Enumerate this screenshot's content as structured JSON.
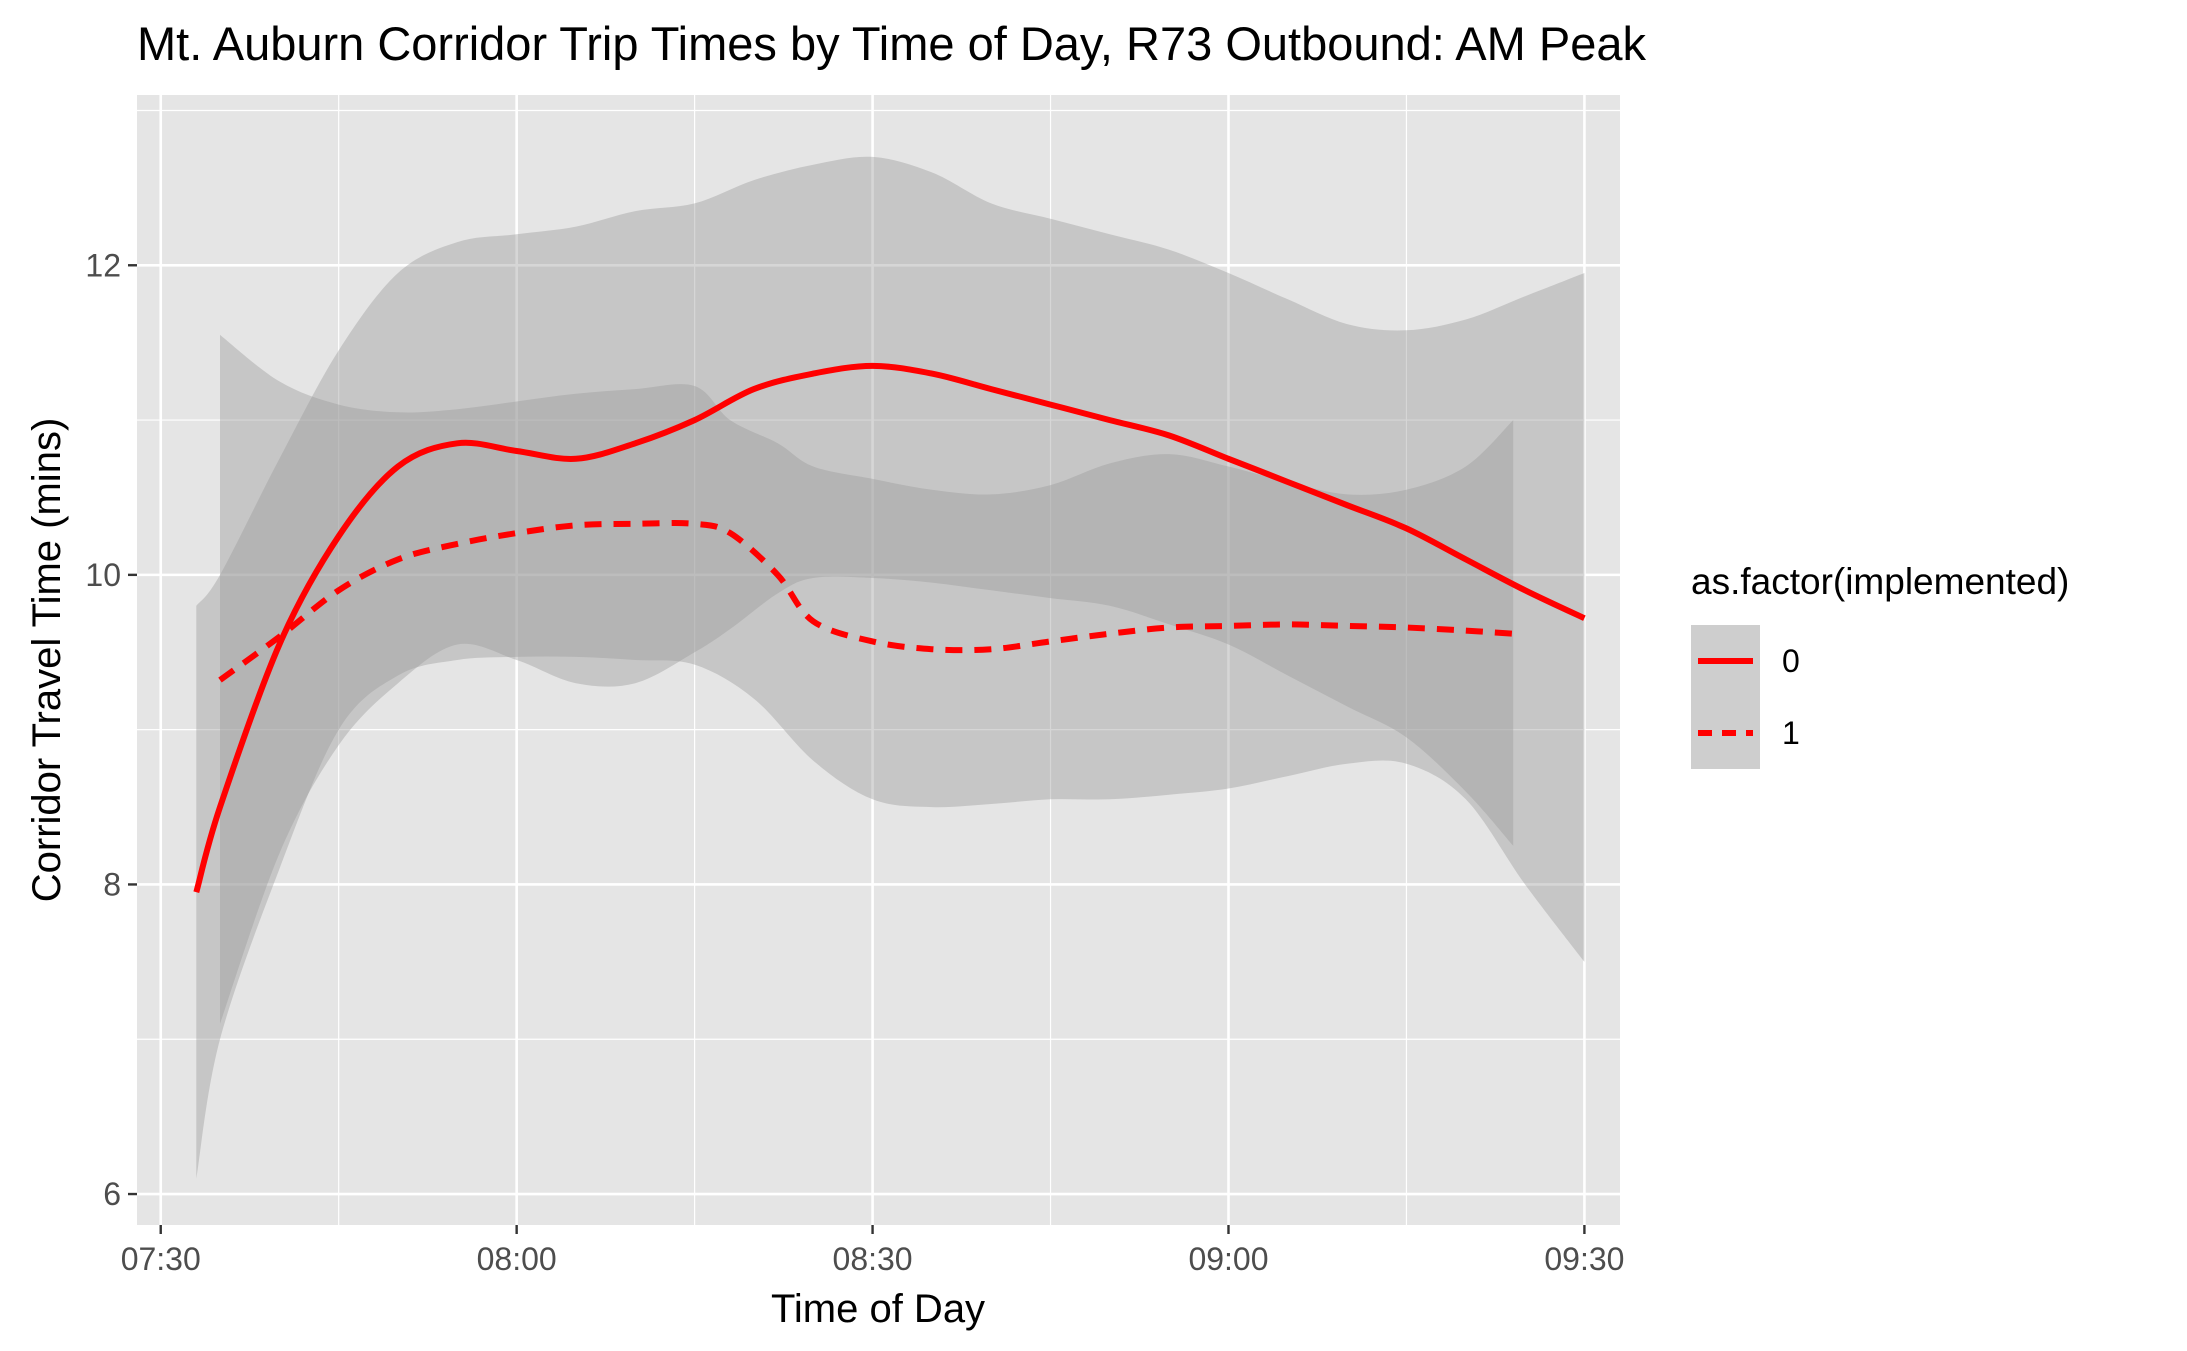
{
  "chart_data": {
    "type": "line",
    "title": "Mt. Auburn Corridor Trip Times by Time of Day, R73 Outbound: AM Peak",
    "xlabel": "Time of Day",
    "ylabel": "Corridor Travel Time (mins)",
    "x_unit": "clock time",
    "xlim": [
      "07:28",
      "09:33"
    ],
    "ylim": [
      5.8,
      13.1
    ],
    "x_ticks": [
      "07:30",
      "08:00",
      "08:30",
      "09:00",
      "09:30"
    ],
    "y_ticks": [
      6,
      8,
      10,
      12
    ],
    "grid": true,
    "legend": {
      "title": "as.factor(implemented)",
      "placement": "right",
      "entries": [
        "0",
        "1"
      ]
    },
    "series": [
      {
        "name": "0",
        "line_style": "solid",
        "color": "#ff0000",
        "band_color": "#999999",
        "points": [
          {
            "x": "07:33",
            "y": 7.95,
            "lo": 6.1,
            "hi": 9.8
          },
          {
            "x": "07:35",
            "y": 8.5,
            "lo": 7.0,
            "hi": 10.0
          },
          {
            "x": "07:40",
            "y": 9.55,
            "lo": 8.1,
            "hi": 10.75
          },
          {
            "x": "07:45",
            "y": 10.25,
            "lo": 9.0,
            "hi": 11.45
          },
          {
            "x": "07:50",
            "y": 10.7,
            "lo": 9.35,
            "hi": 11.95
          },
          {
            "x": "07:55",
            "y": 10.85,
            "lo": 9.45,
            "hi": 12.15
          },
          {
            "x": "08:00",
            "y": 10.8,
            "lo": 9.47,
            "hi": 12.2
          },
          {
            "x": "08:05",
            "y": 10.75,
            "lo": 9.47,
            "hi": 12.25
          },
          {
            "x": "08:10",
            "y": 10.85,
            "lo": 9.45,
            "hi": 12.35
          },
          {
            "x": "08:15",
            "y": 11.0,
            "lo": 9.42,
            "hi": 12.4
          },
          {
            "x": "08:20",
            "y": 11.2,
            "lo": 9.2,
            "hi": 12.55
          },
          {
            "x": "08:25",
            "y": 11.3,
            "lo": 8.8,
            "hi": 12.65
          },
          {
            "x": "08:30",
            "y": 11.35,
            "lo": 8.55,
            "hi": 12.7
          },
          {
            "x": "08:35",
            "y": 11.3,
            "lo": 8.5,
            "hi": 12.6
          },
          {
            "x": "08:40",
            "y": 11.2,
            "lo": 8.52,
            "hi": 12.4
          },
          {
            "x": "08:45",
            "y": 11.1,
            "lo": 8.55,
            "hi": 12.3
          },
          {
            "x": "08:50",
            "y": 11.0,
            "lo": 8.55,
            "hi": 12.2
          },
          {
            "x": "08:55",
            "y": 10.9,
            "lo": 8.58,
            "hi": 12.1
          },
          {
            "x": "09:00",
            "y": 10.75,
            "lo": 8.62,
            "hi": 11.95
          },
          {
            "x": "09:05",
            "y": 10.6,
            "lo": 8.7,
            "hi": 11.78
          },
          {
            "x": "09:10",
            "y": 10.45,
            "lo": 8.78,
            "hi": 11.62
          },
          {
            "x": "09:15",
            "y": 10.3,
            "lo": 8.78,
            "hi": 11.58
          },
          {
            "x": "09:20",
            "y": 10.1,
            "lo": 8.55,
            "hi": 11.65
          },
          {
            "x": "09:25",
            "y": 9.9,
            "lo": 8.0,
            "hi": 11.8
          },
          {
            "x": "09:30",
            "y": 9.72,
            "lo": 7.5,
            "hi": 11.95
          }
        ]
      },
      {
        "name": "1",
        "line_style": "dashed",
        "color": "#ff0000",
        "band_color": "#999999",
        "points": [
          {
            "x": "07:35",
            "y": 9.32,
            "lo": 7.1,
            "hi": 11.55
          },
          {
            "x": "07:40",
            "y": 9.6,
            "lo": 8.2,
            "hi": 11.25
          },
          {
            "x": "07:45",
            "y": 9.9,
            "lo": 8.9,
            "hi": 11.1
          },
          {
            "x": "07:50",
            "y": 10.1,
            "lo": 9.3,
            "hi": 11.05
          },
          {
            "x": "07:55",
            "y": 10.2,
            "lo": 9.55,
            "hi": 11.07
          },
          {
            "x": "08:00",
            "y": 10.27,
            "lo": 9.45,
            "hi": 11.12
          },
          {
            "x": "08:05",
            "y": 10.32,
            "lo": 9.3,
            "hi": 11.17
          },
          {
            "x": "08:10",
            "y": 10.33,
            "lo": 9.3,
            "hi": 11.2
          },
          {
            "x": "08:15",
            "y": 10.33,
            "lo": 9.5,
            "hi": 11.22
          },
          {
            "x": "08:18",
            "y": 10.27,
            "lo": 9.65,
            "hi": 11.0
          },
          {
            "x": "08:22",
            "y": 10.0,
            "lo": 9.88,
            "hi": 10.85
          },
          {
            "x": "08:25",
            "y": 9.7,
            "lo": 9.98,
            "hi": 10.7
          },
          {
            "x": "08:30",
            "y": 9.57,
            "lo": 9.98,
            "hi": 10.62
          },
          {
            "x": "08:35",
            "y": 9.52,
            "lo": 9.95,
            "hi": 10.55
          },
          {
            "x": "08:40",
            "y": 9.52,
            "lo": 9.9,
            "hi": 10.52
          },
          {
            "x": "08:45",
            "y": 9.57,
            "lo": 9.85,
            "hi": 10.58
          },
          {
            "x": "08:50",
            "y": 9.62,
            "lo": 9.8,
            "hi": 10.72
          },
          {
            "x": "08:55",
            "y": 9.66,
            "lo": 9.68,
            "hi": 10.78
          },
          {
            "x": "09:00",
            "y": 9.67,
            "lo": 9.55,
            "hi": 10.7
          },
          {
            "x": "09:05",
            "y": 9.68,
            "lo": 9.35,
            "hi": 10.6
          },
          {
            "x": "09:10",
            "y": 9.67,
            "lo": 9.15,
            "hi": 10.52
          },
          {
            "x": "09:15",
            "y": 9.66,
            "lo": 8.95,
            "hi": 10.55
          },
          {
            "x": "09:20",
            "y": 9.64,
            "lo": 8.6,
            "hi": 10.7
          },
          {
            "x": "09:24",
            "y": 9.62,
            "lo": 8.25,
            "hi": 11.0
          }
        ]
      }
    ]
  }
}
